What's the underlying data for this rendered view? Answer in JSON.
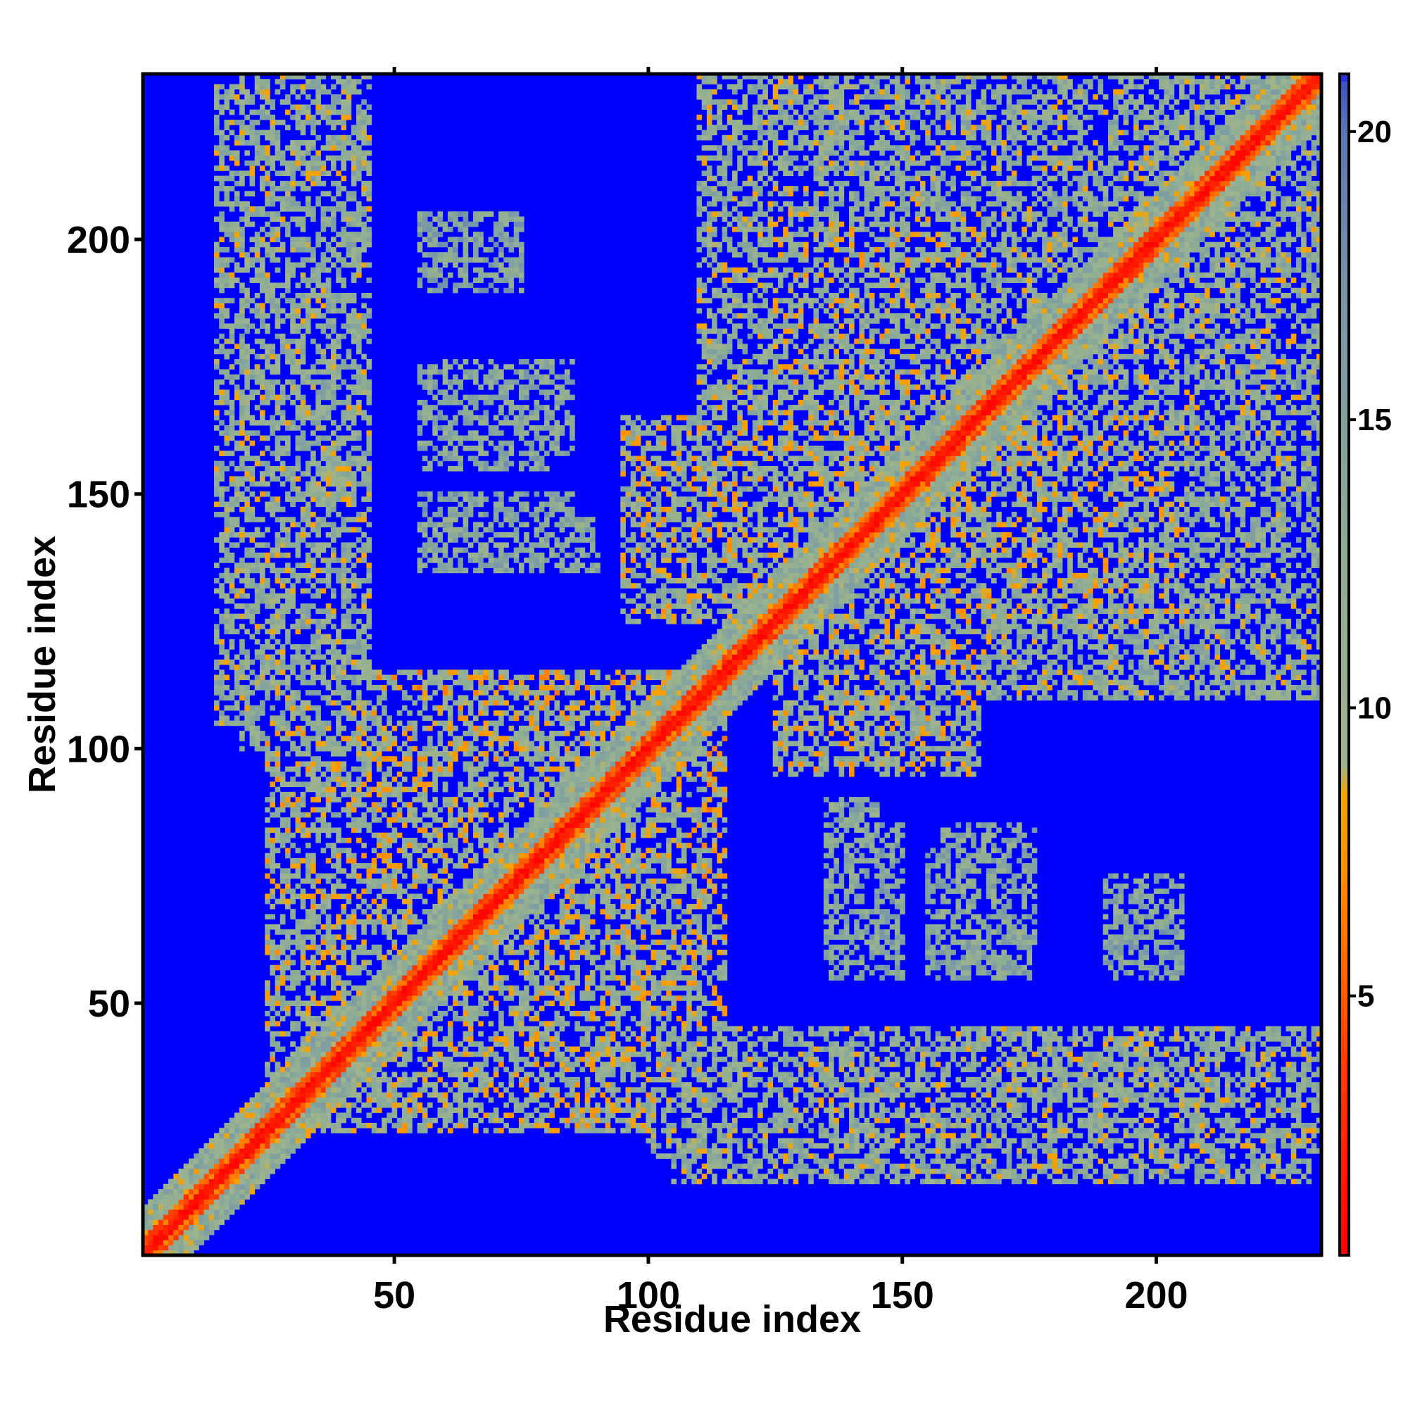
{
  "chart_data": {
    "type": "heatmap",
    "title": "",
    "xlabel": "Residue index",
    "ylabel": "Residue index",
    "n_residues": 232,
    "xlim": [
      0.5,
      232.5
    ],
    "ylim": [
      0.5,
      232.5
    ],
    "x_ticks": [
      50,
      100,
      150,
      200
    ],
    "y_ticks": [
      50,
      100,
      150,
      200
    ],
    "colorbar": {
      "ticks": [
        5,
        10,
        15,
        20
      ],
      "range": [
        0.5,
        21
      ],
      "stops": [
        {
          "v": 0.5,
          "color": "#ff0000"
        },
        {
          "v": 4.0,
          "color": "#ff4000"
        },
        {
          "v": 7.0,
          "color": "#ff8c00"
        },
        {
          "v": 8.5,
          "color": "#f5a500"
        },
        {
          "v": 9.0,
          "color": "#a0b48c"
        },
        {
          "v": 13.0,
          "color": "#8cac96"
        },
        {
          "v": 17.0,
          "color": "#7896a8"
        },
        {
          "v": 20.0,
          "color": "#5a78b4"
        },
        {
          "v": 20.9,
          "color": "#3c50c8"
        },
        {
          "v": 21.0,
          "color": "#0000ff"
        }
      ]
    },
    "background_value": 21,
    "background_color": "#0000ff",
    "grid": false,
    "legend": "colorbar-right",
    "diagonal_band": {
      "width": 3.5
    },
    "contact_regions": [
      {
        "x": [
          15,
          45
        ],
        "y": [
          105,
          230
        ],
        "value": 12
      },
      {
        "x": [
          15,
          45
        ],
        "y": [
          125,
          145
        ],
        "value": 9
      },
      {
        "x": [
          30,
          105
        ],
        "y": [
          25,
          110
        ],
        "value": 11
      },
      {
        "x": [
          45,
          115
        ],
        "y": [
          45,
          115
        ],
        "value": 10
      },
      {
        "x": [
          55,
          90
        ],
        "y": [
          135,
          145
        ],
        "value": 13
      },
      {
        "x": [
          60,
          85
        ],
        "y": [
          158,
          176
        ],
        "value": 13
      },
      {
        "x": [
          55,
          75
        ],
        "y": [
          195,
          205
        ],
        "value": 14
      },
      {
        "x": [
          112,
          140
        ],
        "y": [
          210,
          232
        ],
        "value": 12
      },
      {
        "x": [
          100,
          145
        ],
        "y": [
          140,
          165
        ],
        "value": 11
      },
      {
        "x": [
          125,
          165
        ],
        "y": [
          95,
          205
        ],
        "value": 11
      },
      {
        "x": [
          130,
          140
        ],
        "y": [
          155,
          165
        ],
        "value": 7
      },
      {
        "x": [
          140,
          232
        ],
        "y": [
          110,
          145
        ],
        "value": 12
      },
      {
        "x": [
          150,
          165
        ],
        "y": [
          130,
          140
        ],
        "value": 7
      },
      {
        "x": [
          160,
          232
        ],
        "y": [
          145,
          232
        ],
        "value": 12
      },
      {
        "x": [
          180,
          232
        ],
        "y": [
          180,
          232
        ],
        "value": 10
      },
      {
        "x": [
          100,
          232
        ],
        "y": [
          20,
          45
        ],
        "value": 12
      },
      {
        "x": [
          130,
          140
        ],
        "y": [
          22,
          32
        ],
        "value": 7
      },
      {
        "x": [
          185,
          195
        ],
        "y": [
          22,
          32
        ],
        "value": 7
      },
      {
        "x": [
          135,
          150
        ],
        "y": [
          55,
          85
        ],
        "value": 14
      },
      {
        "x": [
          155,
          175
        ],
        "y": [
          55,
          80
        ],
        "value": 14
      },
      {
        "x": [
          190,
          200
        ],
        "y": [
          55,
          75
        ],
        "value": 14
      }
    ]
  }
}
